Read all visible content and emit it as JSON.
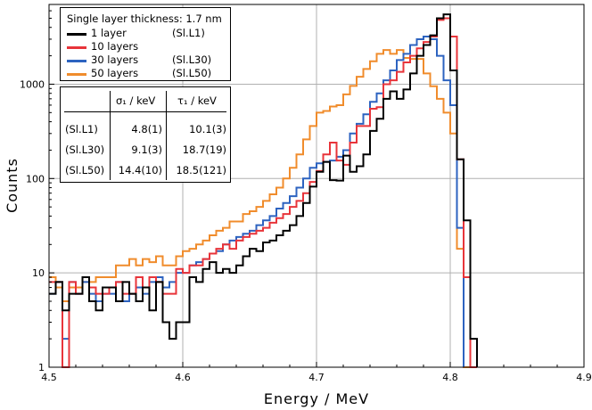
{
  "chart_data": {
    "type": "histogram",
    "title": "",
    "xlabel": "Energy / MeV",
    "ylabel": "Counts",
    "xlim": [
      4.5,
      4.9
    ],
    "ylim": [
      1,
      7000
    ],
    "yscale": "log",
    "xticks": [
      "4.5",
      "4.6",
      "4.7",
      "4.8",
      "4.9"
    ],
    "yticks": [
      "1",
      "10",
      "100",
      "1000"
    ],
    "grid": true,
    "bin_width": 0.005,
    "x": [
      4.5,
      4.505,
      4.51,
      4.515,
      4.52,
      4.525,
      4.53,
      4.535,
      4.54,
      4.545,
      4.55,
      4.555,
      4.56,
      4.565,
      4.57,
      4.575,
      4.58,
      4.585,
      4.59,
      4.595,
      4.6,
      4.605,
      4.61,
      4.615,
      4.62,
      4.625,
      4.63,
      4.635,
      4.64,
      4.645,
      4.65,
      4.655,
      4.66,
      4.665,
      4.67,
      4.675,
      4.68,
      4.685,
      4.69,
      4.695,
      4.7,
      4.705,
      4.71,
      4.715,
      4.72,
      4.725,
      4.73,
      4.735,
      4.74,
      4.745,
      4.75,
      4.755,
      4.76,
      4.765,
      4.77,
      4.775,
      4.78,
      4.785,
      4.79,
      4.795,
      4.8,
      4.805,
      4.81,
      4.815,
      4.82
    ],
    "series": [
      {
        "name": "1 layer",
        "tag": "(Sl.L1)",
        "color": "#000000",
        "values": [
          6,
          8,
          4,
          6,
          6,
          9,
          5,
          4,
          7,
          7,
          5,
          8,
          6,
          5,
          7,
          4,
          8,
          3,
          2,
          3,
          3,
          9,
          8,
          11,
          13,
          10,
          11,
          10,
          12,
          15,
          18,
          17,
          21,
          22,
          25,
          28,
          32,
          40,
          55,
          82,
          118,
          150,
          96,
          95,
          175,
          118,
          135,
          180,
          320,
          430,
          700,
          840,
          700,
          880,
          1300,
          2000,
          2600,
          3300,
          5000,
          5500,
          1400,
          160,
          36,
          2,
          0
        ]
      },
      {
        "name": "10 layers",
        "tag": "",
        "color": "#e8343a",
        "values": [
          8,
          8,
          1,
          8,
          6,
          9,
          7,
          6,
          6,
          7,
          8,
          6,
          6,
          9,
          7,
          9,
          8,
          6,
          6,
          11,
          10,
          12,
          12,
          14,
          16,
          18,
          20,
          18,
          22,
          24,
          26,
          28,
          30,
          34,
          38,
          42,
          50,
          58,
          70,
          92,
          120,
          180,
          240,
          155,
          140,
          240,
          360,
          360,
          550,
          570,
          1000,
          1100,
          1350,
          1700,
          2000,
          2400,
          2800,
          3200,
          4800,
          5000,
          3200,
          160,
          9,
          1,
          0
        ]
      },
      {
        "name": "30 layers",
        "tag": "(Sl.L30)",
        "color": "#2d63c0",
        "values": [
          6,
          8,
          2,
          8,
          6,
          8,
          6,
          5,
          6,
          6,
          8,
          5,
          6,
          7,
          6,
          8,
          9,
          7,
          8,
          10,
          10,
          12,
          13,
          14,
          16,
          17,
          20,
          22,
          24,
          26,
          28,
          32,
          36,
          40,
          48,
          55,
          65,
          80,
          100,
          130,
          145,
          150,
          155,
          170,
          200,
          300,
          380,
          480,
          650,
          800,
          1100,
          1400,
          1800,
          2100,
          2600,
          3000,
          3200,
          3000,
          2000,
          1100,
          600,
          30,
          0,
          0,
          0
        ]
      },
      {
        "name": "50 layers",
        "tag": "(Sl.L50)",
        "color": "#f08c2c",
        "values": [
          9,
          7,
          5,
          7,
          7,
          8,
          8,
          9,
          9,
          9,
          12,
          12,
          14,
          12,
          14,
          13,
          15,
          12,
          12,
          15,
          17,
          18,
          20,
          22,
          25,
          28,
          30,
          35,
          35,
          42,
          45,
          50,
          58,
          68,
          80,
          100,
          130,
          180,
          260,
          360,
          500,
          520,
          580,
          600,
          780,
          960,
          1200,
          1450,
          1750,
          2100,
          2300,
          2100,
          2300,
          1900,
          1850,
          1850,
          1300,
          950,
          700,
          500,
          300,
          18,
          1,
          0,
          0
        ]
      }
    ],
    "legend": {
      "title": "Single layer thickness: 1.7 nm",
      "placement": "top-left"
    },
    "table": {
      "headers": [
        "",
        "σ₁ / keV",
        "τ₁ / keV"
      ],
      "rows": [
        [
          "(Sl.L1)",
          "4.8(1)",
          "10.1(3)"
        ],
        [
          "(Sl.L30)",
          "9.1(3)",
          "18.7(19)"
        ],
        [
          "(Sl.L50)",
          "14.4(10)",
          "18.5(121)"
        ]
      ]
    }
  }
}
